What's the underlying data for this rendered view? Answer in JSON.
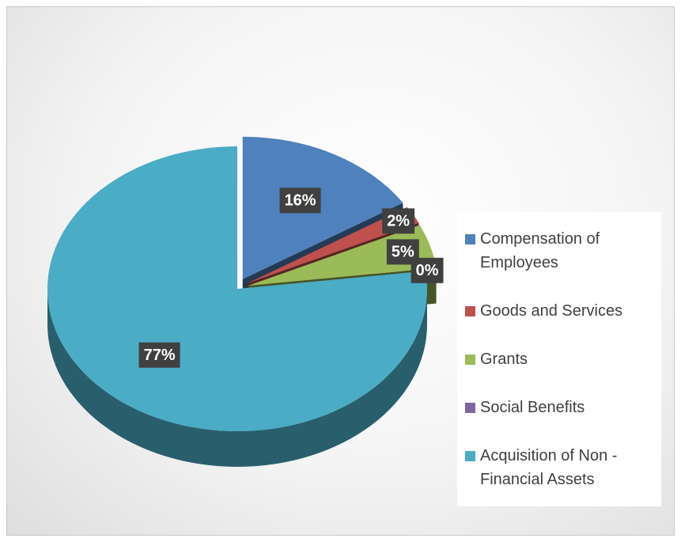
{
  "chart_data": {
    "type": "pie",
    "categories": [
      "Compensation of Employees",
      "Goods and Services",
      "Grants",
      "Social Benefits",
      "Acquisition of Non - Financial Assets"
    ],
    "values": [
      16,
      2,
      5,
      0,
      77
    ],
    "value_labels": [
      "16%",
      "2%",
      "5%",
      "0%",
      "77%"
    ],
    "colors": [
      "#4f81bd",
      "#c0504d",
      "#9bbb59",
      "#8064a2",
      "#4bacc6"
    ],
    "legend": "right"
  }
}
